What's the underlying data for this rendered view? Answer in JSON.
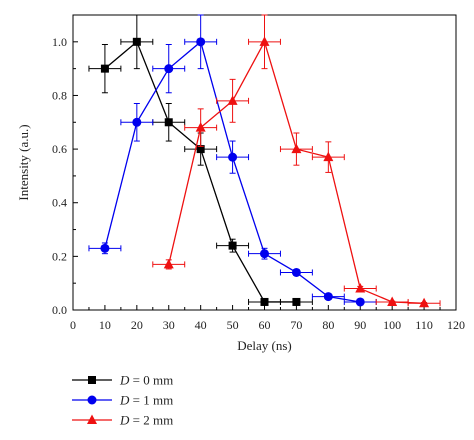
{
  "chart_data": {
    "type": "line",
    "xlabel": "Delay (ns)",
    "ylabel": "Intensity (a.u.)",
    "xlim": [
      0,
      120
    ],
    "ylim": [
      0,
      1.1
    ],
    "xticks": [
      0,
      10,
      20,
      30,
      40,
      50,
      60,
      70,
      80,
      90,
      100,
      110,
      120
    ],
    "yticks": [
      0.0,
      0.2,
      0.4,
      0.6,
      0.8,
      1.0
    ],
    "ytick_labels": [
      "0.0",
      "0.2",
      "0.4",
      "0.6",
      "0.8",
      "1.0"
    ],
    "grid": false,
    "legend_position": "bottom-left, below plot",
    "series": [
      {
        "name": "D = 0 mm",
        "legend_var": "D",
        "legend_rest": " = 0 mm",
        "color": "#000000",
        "marker": "square",
        "x": [
          10,
          20,
          30,
          40,
          50,
          60,
          70
        ],
        "y": [
          0.9,
          1.0,
          0.7,
          0.6,
          0.24,
          0.03,
          0.03
        ],
        "xerr": [
          5,
          5,
          5,
          5,
          5,
          5,
          5
        ],
        "yerr": [
          0.09,
          0.1,
          0.07,
          0.06,
          0.024,
          0.0,
          0.0
        ]
      },
      {
        "name": "D = 1 mm",
        "legend_var": "D",
        "legend_rest": " = 1 mm",
        "color": "#0000ee",
        "marker": "circle",
        "x": [
          10,
          20,
          30,
          40,
          50,
          60,
          70,
          80,
          90
        ],
        "y": [
          0.23,
          0.7,
          0.9,
          1.0,
          0.57,
          0.21,
          0.14,
          0.05,
          0.03
        ],
        "xerr": [
          5,
          5,
          5,
          5,
          5,
          5,
          5,
          5,
          5
        ],
        "yerr": [
          0.02,
          0.07,
          0.09,
          0.1,
          0.06,
          0.02,
          0.01,
          0.005,
          0.003
        ]
      },
      {
        "name": "D = 2 mm",
        "legend_var": "D",
        "legend_rest": " = 2 mm",
        "color": "#ee1111",
        "marker": "triangle",
        "x": [
          30,
          40,
          50,
          60,
          70,
          80,
          90,
          100,
          110
        ],
        "y": [
          0.17,
          0.68,
          0.78,
          1.0,
          0.6,
          0.57,
          0.08,
          0.03,
          0.025
        ],
        "xerr": [
          5,
          5,
          5,
          5,
          5,
          5,
          5,
          5,
          5
        ],
        "yerr": [
          0.017,
          0.07,
          0.08,
          0.1,
          0.06,
          0.057,
          0.008,
          0.003,
          0.003
        ]
      }
    ]
  }
}
